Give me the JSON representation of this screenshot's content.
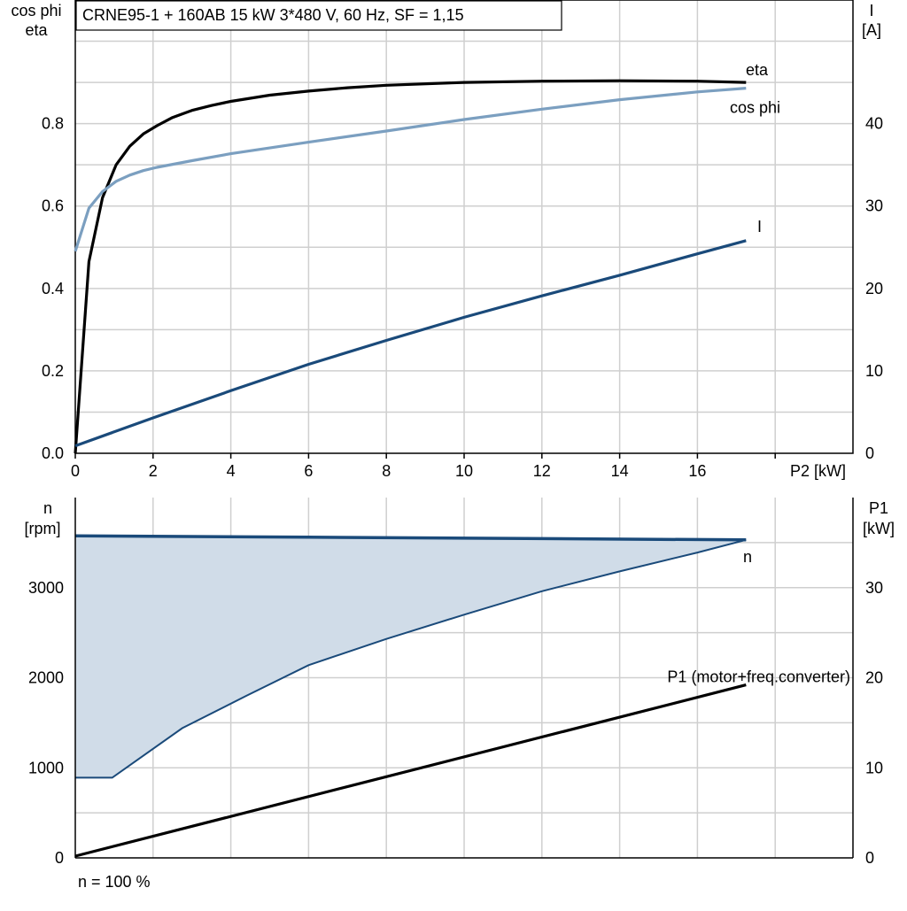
{
  "title": "CRNE95-1 + 160AB   15 kW   3*480 V, 60 Hz, SF = 1,15",
  "footer_note": "n = 100 %",
  "colors": {
    "eta": "#000000",
    "cos_phi": "#7b9fc0",
    "current": "#1a4a7a",
    "speed": "#1a4a7a",
    "speed_fill": "#d0dce8",
    "power": "#000000",
    "grid": "#cfcfcf"
  },
  "chart_data": [
    {
      "type": "line",
      "xlabel": "P2 [kW]",
      "ylabel_left": [
        "cos phi",
        "eta"
      ],
      "ylabel_right": [
        "I",
        "[A]"
      ],
      "xlim": [
        0,
        20
      ],
      "ylim_left": [
        0,
        1.1
      ],
      "ylim_right": [
        0,
        55
      ],
      "xticks": [
        "0",
        "2",
        "4",
        "6",
        "8",
        "10",
        "12",
        "14",
        "16"
      ],
      "yticks_left": [
        "0.0",
        "0.2",
        "0.4",
        "0.6",
        "0.8"
      ],
      "yticks_right": [
        "0",
        "10",
        "20",
        "30",
        "40"
      ],
      "grid": true,
      "series": [
        {
          "name": "eta",
          "axis": "left",
          "x": [
            0,
            0.35,
            0.7,
            1.05,
            1.4,
            1.75,
            2.1,
            2.5,
            3,
            3.5,
            4,
            5,
            6,
            7,
            8,
            10,
            12,
            14,
            16,
            17.25
          ],
          "y": [
            0,
            0.465,
            0.62,
            0.7,
            0.745,
            0.775,
            0.795,
            0.815,
            0.832,
            0.844,
            0.854,
            0.869,
            0.879,
            0.887,
            0.893,
            0.9,
            0.903,
            0.904,
            0.903,
            0.9
          ]
        },
        {
          "name": "cos phi",
          "axis": "left",
          "x": [
            0,
            0.35,
            0.7,
            1.05,
            1.4,
            1.75,
            2.1,
            3,
            4,
            6,
            8,
            10,
            12,
            14,
            16,
            17.25
          ],
          "y": [
            0.49,
            0.595,
            0.635,
            0.66,
            0.675,
            0.686,
            0.694,
            0.71,
            0.727,
            0.755,
            0.782,
            0.81,
            0.835,
            0.858,
            0.877,
            0.886
          ]
        },
        {
          "name": "I",
          "axis": "right",
          "x": [
            0,
            2,
            4,
            6,
            8,
            10,
            12,
            14,
            16,
            17.25
          ],
          "y": [
            0.9,
            4.3,
            7.6,
            10.8,
            13.7,
            16.5,
            19.1,
            21.6,
            24.2,
            25.8
          ]
        }
      ]
    },
    {
      "type": "area",
      "xlabel": "",
      "ylabel_left": [
        "n",
        "[rpm]"
      ],
      "ylabel_right": [
        "P1",
        "[kW]"
      ],
      "xlim": [
        0,
        20
      ],
      "ylim_left": [
        0,
        4000
      ],
      "ylim_right": [
        0,
        40
      ],
      "yticks_left": [
        "0",
        "1000",
        "2000",
        "3000"
      ],
      "yticks_right": [
        "0",
        "10",
        "20",
        "30"
      ],
      "grid": true,
      "series": [
        {
          "name": "n",
          "axis": "left",
          "role": "max-speed",
          "x": [
            0,
            6,
            17.25
          ],
          "y": [
            3575,
            3560,
            3530
          ]
        },
        {
          "name": "",
          "axis": "left",
          "role": "min-speed",
          "x": [
            0,
            0.95,
            2.75,
            4.4,
            6,
            8,
            10,
            12,
            14,
            16,
            17.25
          ],
          "y": [
            890,
            890,
            1440,
            1800,
            2140,
            2430,
            2700,
            2960,
            3180,
            3390,
            3530
          ]
        },
        {
          "name": "P1 (motor+freq.converter)",
          "axis": "right",
          "x": [
            0,
            17.25
          ],
          "y": [
            0.2,
            19.2
          ]
        }
      ]
    }
  ]
}
